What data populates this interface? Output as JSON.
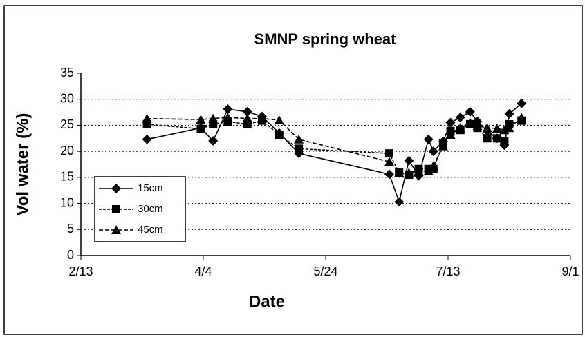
{
  "chart_data": {
    "type": "line",
    "title": "SMNP spring wheat",
    "x_label": "Date",
    "y_label": "Vol water (%)",
    "x": [
      71,
      93,
      98,
      104,
      112,
      118,
      125,
      133,
      170,
      174,
      178,
      182,
      186,
      188,
      192,
      195,
      199,
      203,
      206,
      210,
      214,
      217,
      219,
      224
    ],
    "series": [
      {
        "name": "15cm",
        "color": "#000000",
        "marker": "diamond",
        "values": [
          22.3,
          24.5,
          22,
          28.1,
          27.6,
          26.7,
          23.5,
          19.6,
          15.6,
          10.3,
          18.2,
          15.3,
          22.3,
          20,
          21.9,
          25.5,
          26.5,
          27.6,
          25.7,
          23.9,
          22.5,
          21.2,
          27.2,
          29.2
        ]
      },
      {
        "name": "30cm",
        "color": "#000000",
        "marker": "square",
        "values": [
          25.2,
          24.3,
          25.2,
          25.7,
          25.2,
          25.9,
          23.2,
          20.5,
          19.6,
          15.9,
          15.5,
          16.6,
          16.6,
          16.6,
          21.5,
          23.9,
          24.1,
          25.2,
          24.5,
          22.5,
          22.5,
          21.9,
          25.2,
          25.9
        ]
      },
      {
        "name": "45cm",
        "color": "#000000",
        "marker": "triangle",
        "values": [
          26.3,
          26.1,
          26.3,
          26.5,
          26.3,
          26.3,
          26.0,
          22.3,
          18.0,
          15.9,
          15.9,
          16.2,
          16.2,
          17.2,
          21,
          23.2,
          24.5,
          25.5,
          24.9,
          24.5,
          24.4,
          24.1,
          24.5,
          26.5
        ]
      }
    ],
    "xlim": [
      44,
      244
    ],
    "xticks": [
      {
        "value": 44,
        "label": "2/13"
      },
      {
        "value": 94,
        "label": "4/4"
      },
      {
        "value": 144,
        "label": "5/24"
      },
      {
        "value": 194,
        "label": "7/13"
      },
      {
        "value": 244,
        "label": "9/1"
      }
    ],
    "ylim": [
      0,
      35
    ],
    "yticks": [
      0,
      5,
      10,
      15,
      20,
      25,
      30,
      35
    ],
    "grid": true,
    "legend": "lower left"
  }
}
